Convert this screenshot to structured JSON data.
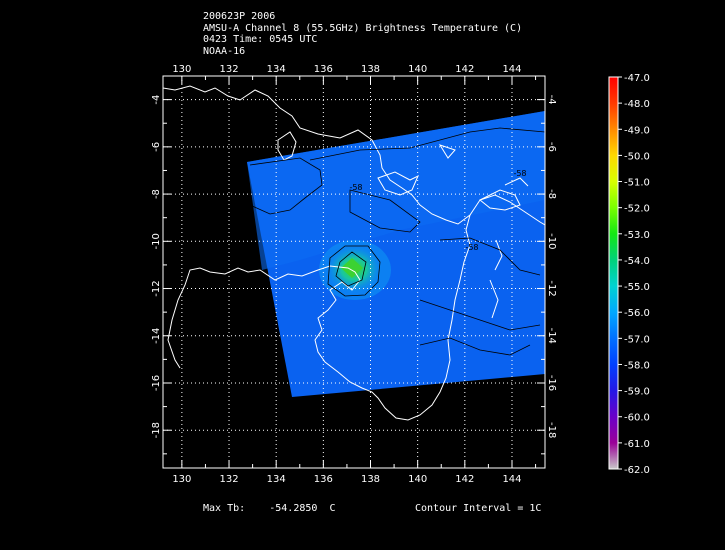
{
  "header": {
    "line1": "200623P 2006",
    "line2": "AMSU-A Channel 8 (55.5GHz) Brightness Temperature (C)",
    "line3": "0423 Time: 0545 UTC",
    "line4": "NOAA-16"
  },
  "map": {
    "lon_ticks": [
      "130",
      "132",
      "134",
      "136",
      "138",
      "140",
      "142",
      "144"
    ],
    "lat_ticks": [
      "-4",
      "-6",
      "-8",
      "-10",
      "-12",
      "-14",
      "-16",
      "-18"
    ],
    "lon_range": [
      129.2,
      145.4
    ],
    "lat_range": [
      -19.6,
      -3.0
    ],
    "contour_labels": [
      "-58",
      "-58",
      "-58"
    ],
    "swath_colors": {
      "background": "#0a62f0",
      "warm": "#1dd08a",
      "core": "#39c83a"
    }
  },
  "colorbar": {
    "labels": [
      "-47.0",
      "-48.0",
      "-49.0",
      "-50.0",
      "-51.0",
      "-52.0",
      "-53.0",
      "-54.0",
      "-55.0",
      "-56.0",
      "-57.0",
      "-58.0",
      "-59.0",
      "-60.0",
      "-61.0",
      "-62.0"
    ],
    "colors": [
      "#ff0000",
      "#ff3a00",
      "#ff8a00",
      "#ffd800",
      "#d8ff00",
      "#7aff00",
      "#14e814",
      "#00d27a",
      "#00d2d2",
      "#00a8ff",
      "#0070ff",
      "#0040ff",
      "#2418e6",
      "#6a00c8",
      "#9a0098",
      "#c8c8c8"
    ]
  },
  "footer": {
    "max_tb_label": "Max Tb:",
    "max_tb_value": "-54.2850",
    "max_tb_unit": "C",
    "contour_interval": "Contour Interval = 1C"
  }
}
